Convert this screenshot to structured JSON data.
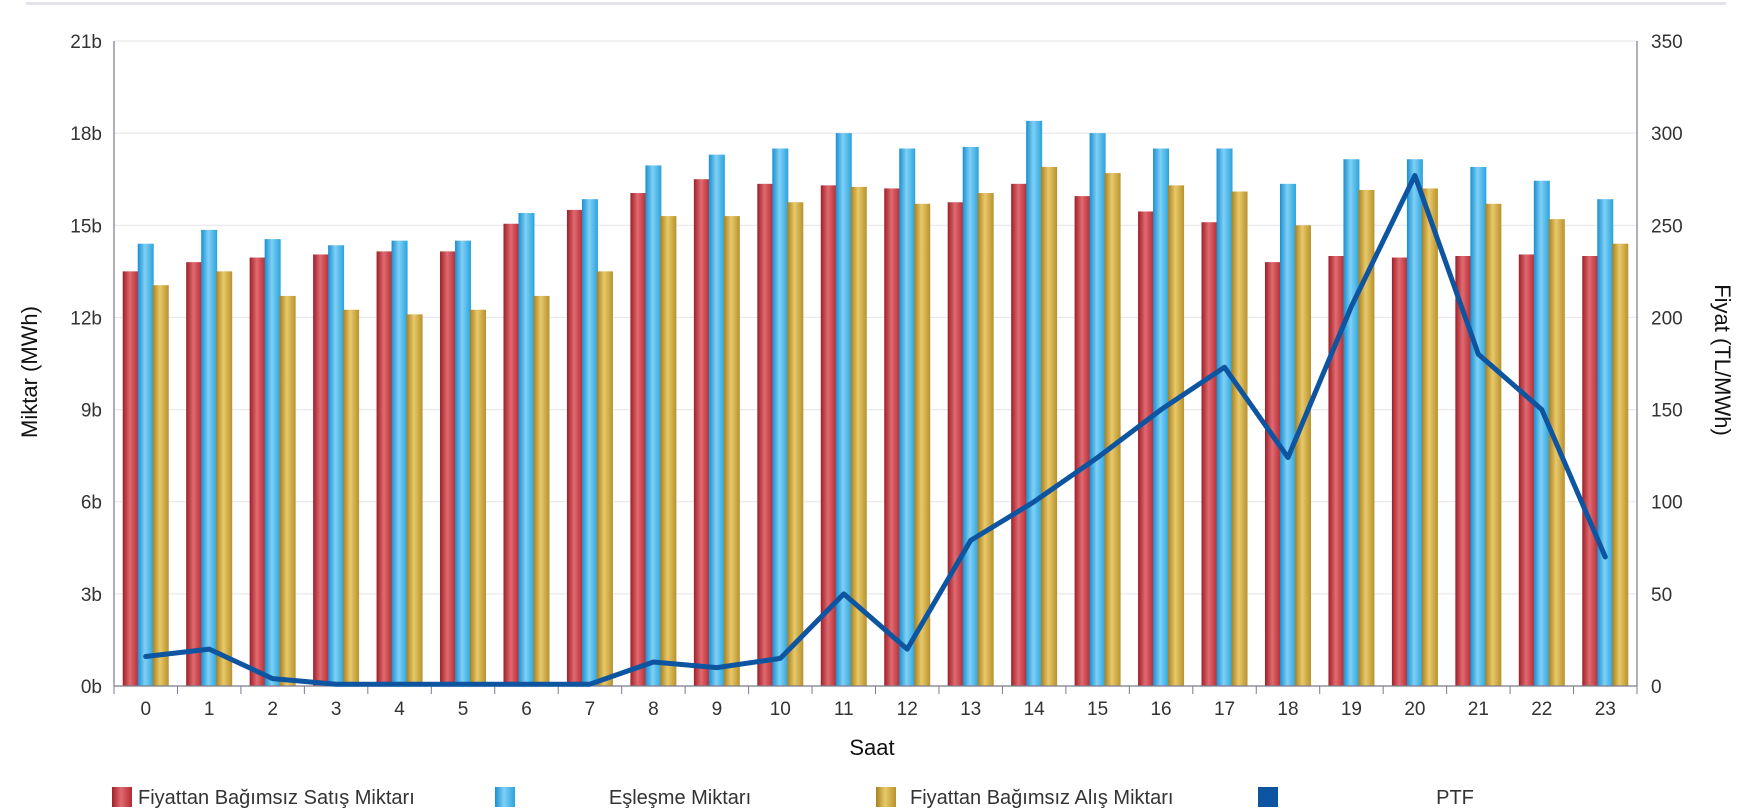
{
  "chart_data": {
    "type": "bar",
    "xlabel": "Saat",
    "ylabel_left": "Miktar (MWh)",
    "ylabel_right": "Fiyat (TL/MWh)",
    "categories": [
      "0",
      "1",
      "2",
      "3",
      "4",
      "5",
      "6",
      "7",
      "8",
      "9",
      "10",
      "11",
      "12",
      "13",
      "14",
      "15",
      "16",
      "17",
      "18",
      "19",
      "20",
      "21",
      "22",
      "23"
    ],
    "y_left": {
      "min": 0,
      "max": 21000,
      "ticks": [
        0,
        3000,
        6000,
        9000,
        12000,
        15000,
        18000,
        21000
      ],
      "tick_labels": [
        "0b",
        "3b",
        "6b",
        "9b",
        "12b",
        "15b",
        "18b",
        "21b"
      ]
    },
    "y_right": {
      "min": 0,
      "max": 350,
      "ticks": [
        0,
        50,
        100,
        150,
        200,
        250,
        300,
        350
      ],
      "tick_labels": [
        "0",
        "50",
        "100",
        "150",
        "200",
        "250",
        "300",
        "350"
      ]
    },
    "grid": true,
    "legend_position": "bottom",
    "series": [
      {
        "name": "Fiyattan Bağımsız Satış Miktarı",
        "type": "bar",
        "axis": "left",
        "color": "#c0343c",
        "values": [
          13500,
          13800,
          13950,
          14050,
          14150,
          14150,
          15050,
          15500,
          16050,
          16500,
          16350,
          16300,
          16200,
          15750,
          16350,
          15950,
          15450,
          15100,
          13800,
          14000,
          13950,
          14000,
          14050,
          14000
        ]
      },
      {
        "name": "Eşleşme Miktarı",
        "type": "bar",
        "axis": "left",
        "color": "#2ea8e0",
        "values": [
          14400,
          14850,
          14550,
          14350,
          14500,
          14500,
          15400,
          15850,
          16950,
          17300,
          17500,
          18000,
          17500,
          17550,
          18400,
          18000,
          17500,
          17500,
          16350,
          17150,
          17150,
          16900,
          16450,
          15850
        ]
      },
      {
        "name": "Fiyattan Bağımsız Alış Miktarı",
        "type": "bar",
        "axis": "left",
        "color": "#c9a23a",
        "values": [
          13050,
          13500,
          12700,
          12250,
          12100,
          12250,
          12700,
          13500,
          15300,
          15300,
          15750,
          16250,
          15700,
          16050,
          16900,
          16700,
          16300,
          16100,
          15000,
          16150,
          16200,
          15700,
          15200,
          14400
        ]
      },
      {
        "name": "PTF",
        "type": "line",
        "axis": "right",
        "color": "#0d55a0",
        "values": [
          16,
          20,
          4,
          1,
          1,
          1,
          1,
          1,
          13,
          10,
          15,
          50,
          20,
          79,
          100,
          124,
          150,
          173,
          124,
          206,
          277,
          180,
          150,
          70
        ]
      }
    ]
  }
}
